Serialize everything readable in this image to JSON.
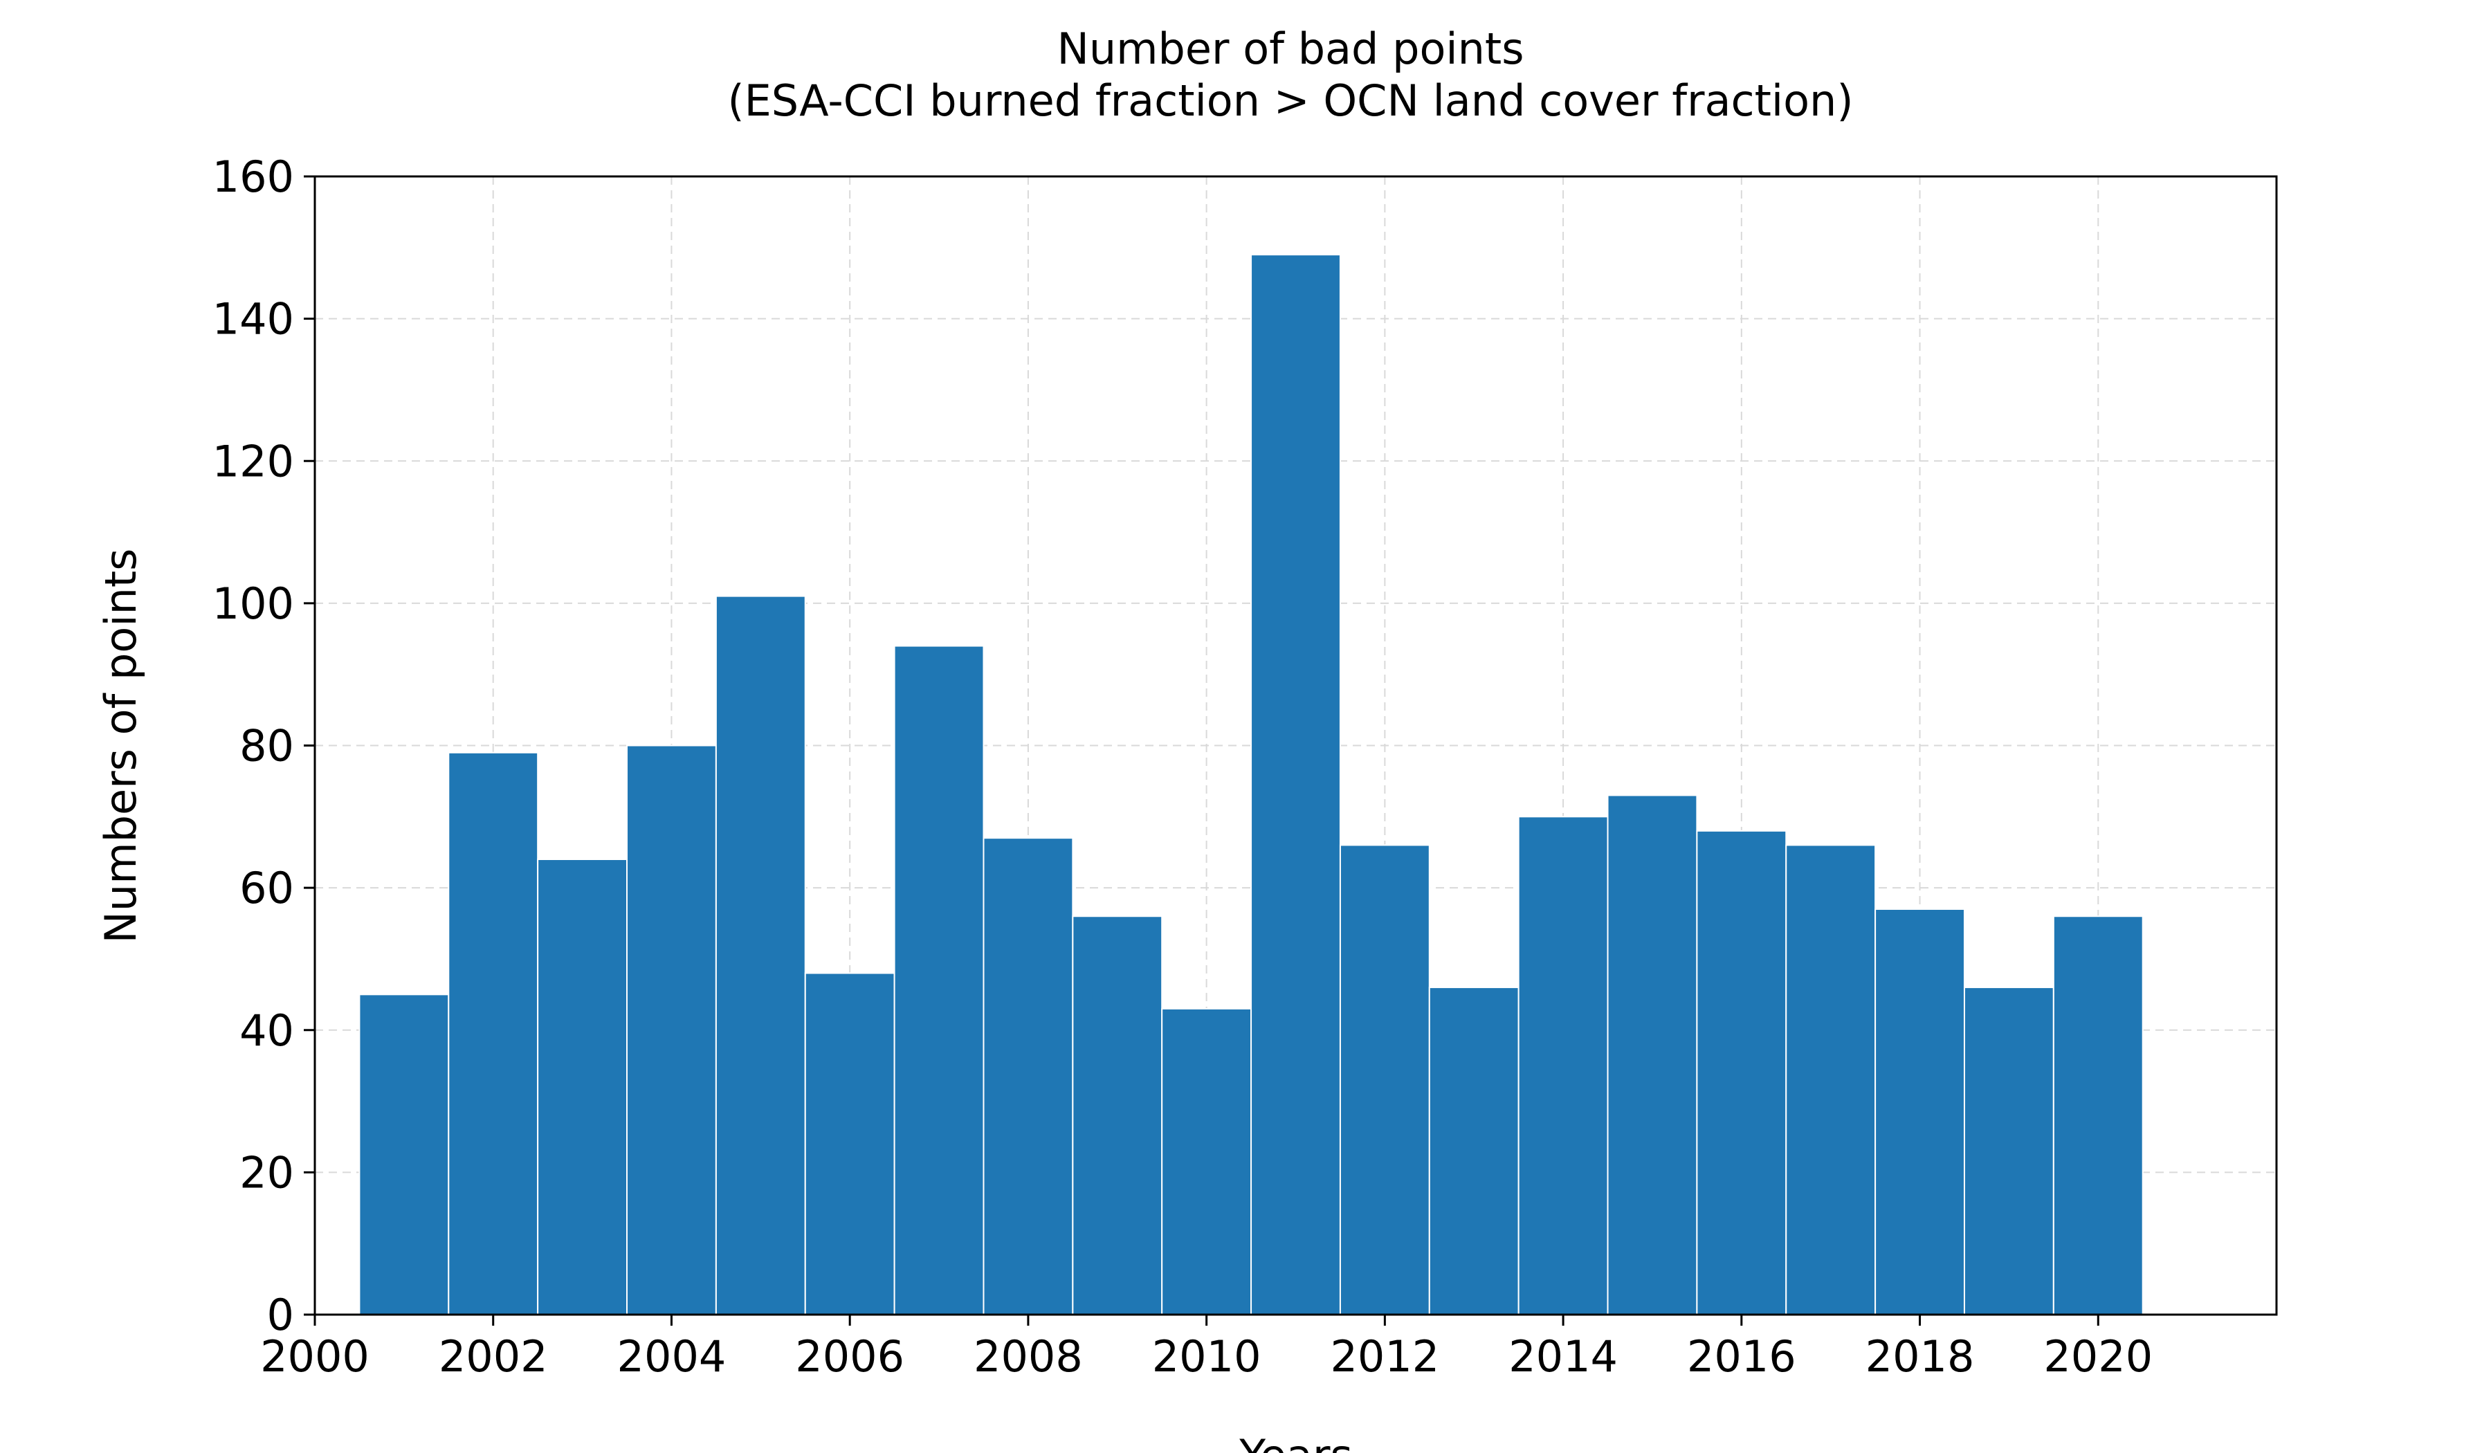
{
  "chart_data": {
    "type": "bar",
    "title": [
      "Number of bad points",
      "(ESA-CCI burned fraction > OCN land cover fraction)"
    ],
    "xlabel": "Years",
    "ylabel": "Numbers of points",
    "x": [
      2001,
      2002,
      2003,
      2004,
      2005,
      2006,
      2007,
      2008,
      2009,
      2010,
      2011,
      2012,
      2013,
      2014,
      2015,
      2016,
      2017,
      2018,
      2019,
      2020
    ],
    "values": [
      45,
      79,
      64,
      80,
      101,
      48,
      94,
      67,
      56,
      43,
      149,
      66,
      46,
      70,
      73,
      68,
      66,
      57,
      46,
      56
    ],
    "bin_width": 1,
    "xlim": [
      2000,
      2022
    ],
    "ylim": [
      0,
      160
    ],
    "xticks": [
      "2000",
      "2002",
      "2004",
      "2006",
      "2008",
      "2010",
      "2012",
      "2014",
      "2016",
      "2018",
      "2020"
    ],
    "yticks": [
      "0",
      "20",
      "40",
      "60",
      "80",
      "100",
      "120",
      "140",
      "160"
    ],
    "grid": true,
    "bar_color": "#1f77b4"
  }
}
